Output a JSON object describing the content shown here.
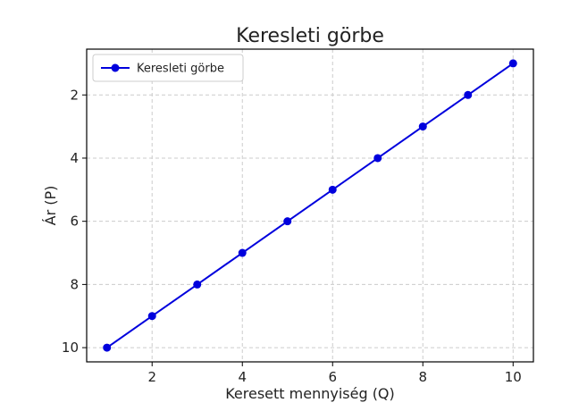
{
  "chart_data": {
    "type": "line",
    "title": "Keresleti görbe",
    "xlabel": "Keresett mennyiség (Q)",
    "ylabel": "Ár (P)",
    "x": [
      1,
      2,
      3,
      4,
      5,
      6,
      7,
      8,
      9,
      10
    ],
    "series": [
      {
        "name": "Keresleti görbe",
        "values": [
          10,
          9,
          8,
          7,
          6,
          5,
          4,
          3,
          2,
          1
        ],
        "color": "#0000dd"
      }
    ],
    "xlim": [
      0.55,
      10.45
    ],
    "ylim": [
      0.55,
      10.45
    ],
    "y_inverted": true,
    "xticks": [
      2,
      4,
      6,
      8,
      10
    ],
    "yticks": [
      2,
      4,
      6,
      8,
      10
    ],
    "grid": true,
    "legend": "top-left"
  }
}
